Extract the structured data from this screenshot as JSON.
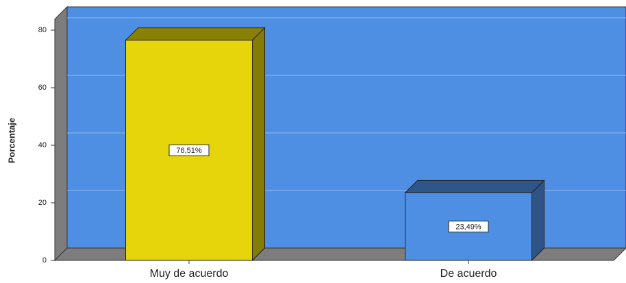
{
  "chart_data": {
    "type": "bar",
    "ylabel": "Porcentaje",
    "categories": [
      "Muy de acuerdo",
      "De acuerdo"
    ],
    "values": [
      76.51,
      23.49
    ],
    "value_labels": [
      "76,51%",
      "23,49%"
    ],
    "colors": [
      "#e5d50a",
      "#4f8fe3"
    ],
    "ylim": [
      0,
      80
    ],
    "yticks": [
      0,
      20,
      40,
      60,
      80
    ],
    "grid": true
  }
}
